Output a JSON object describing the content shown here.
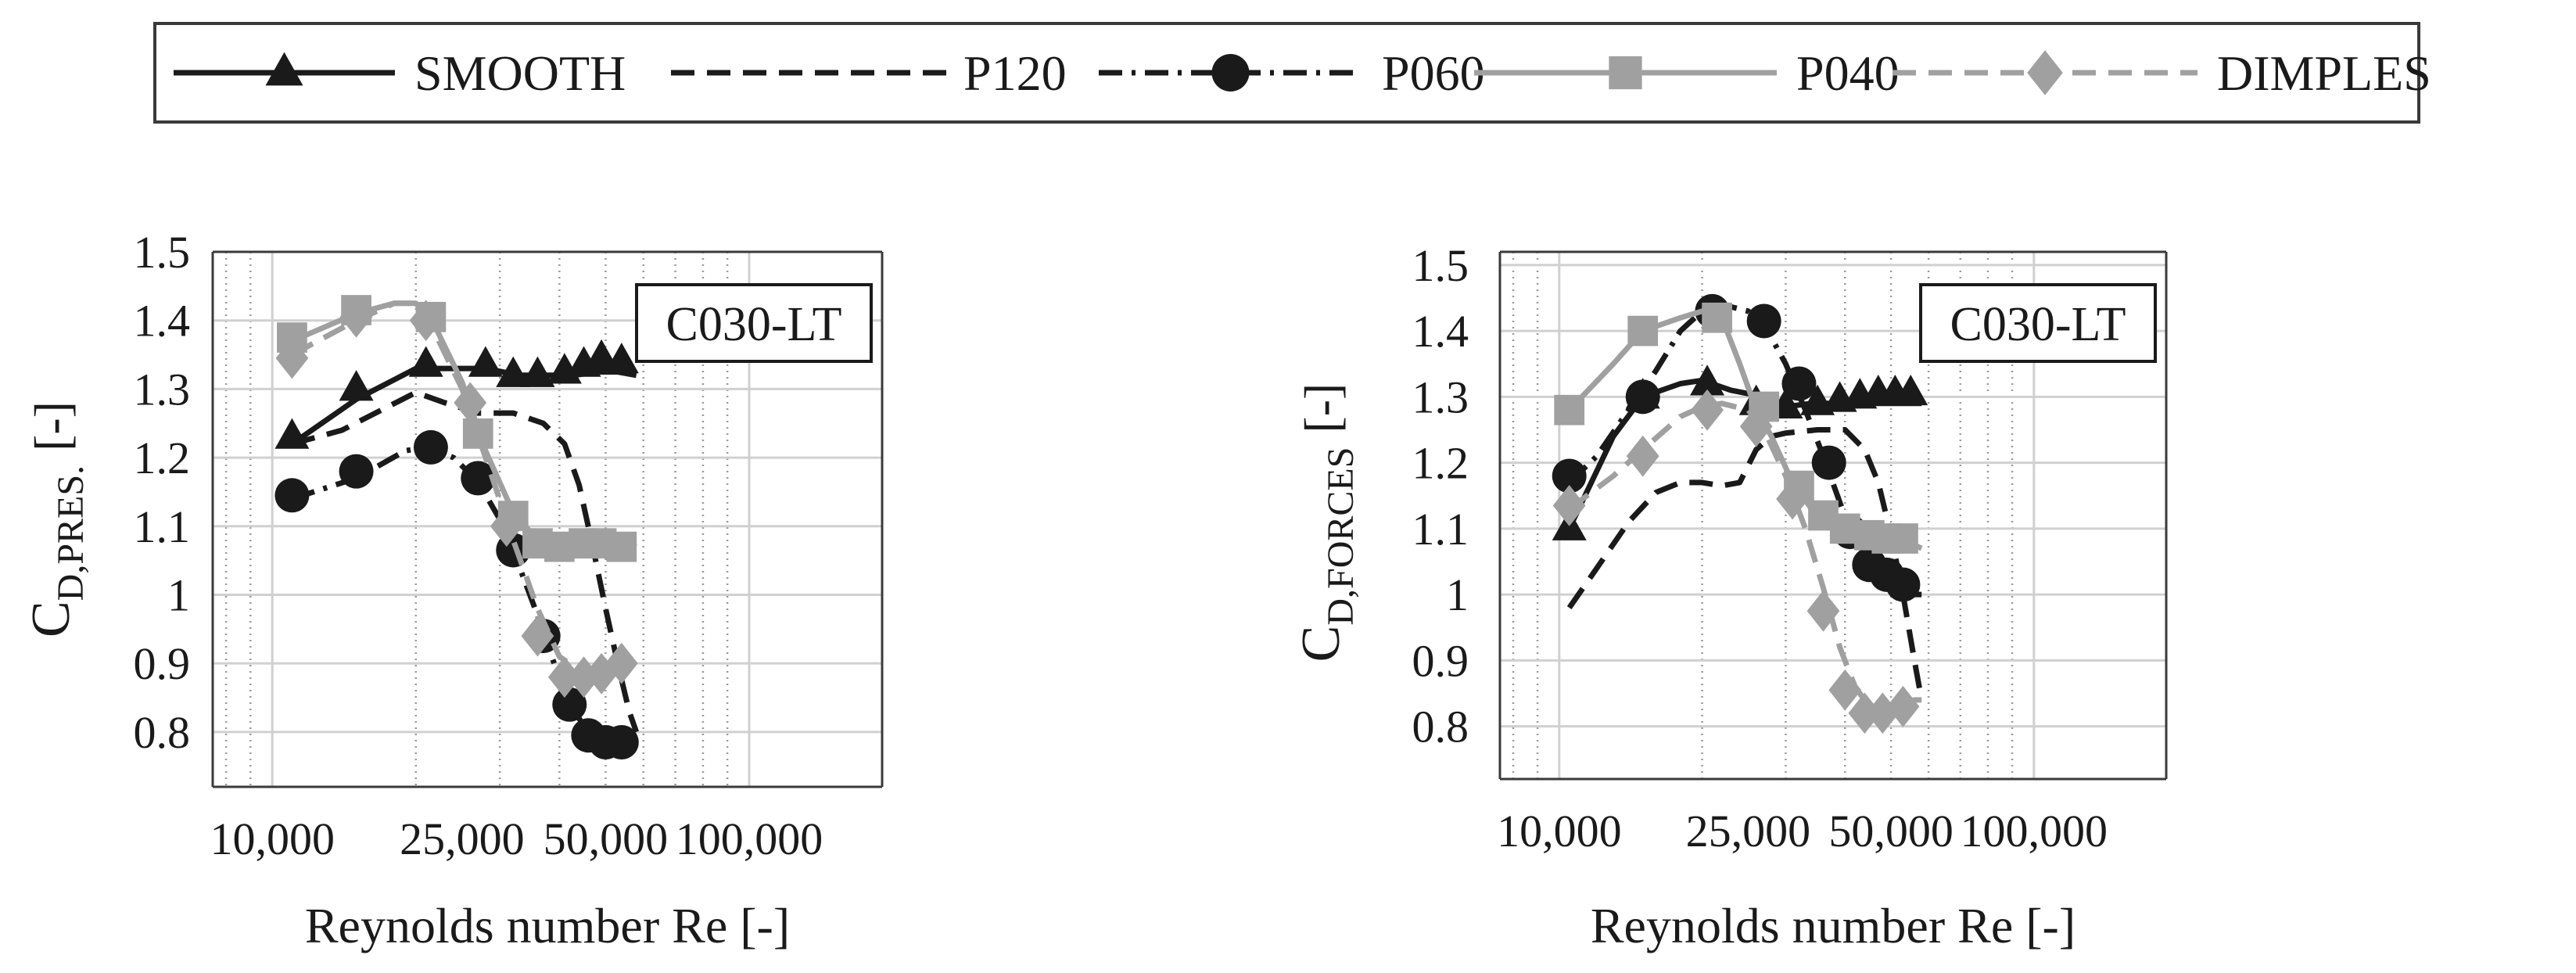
{
  "legend": {
    "entries": [
      {
        "label": "SMOOTH",
        "color": "#1a1a1a",
        "dash": "solid",
        "marker": "triangle"
      },
      {
        "label": "P120",
        "color": "#1a1a1a",
        "dash": "dashed",
        "marker": "none"
      },
      {
        "label": "P060",
        "color": "#1a1a1a",
        "dash": "dashdot",
        "marker": "circle"
      },
      {
        "label": "P040",
        "color": "#a0a0a0",
        "dash": "solid",
        "marker": "square"
      },
      {
        "label": "DIMPLES",
        "color": "#a0a0a0",
        "dash": "dashed",
        "marker": "diamond"
      }
    ]
  },
  "chart_data": [
    {
      "type": "line",
      "title": "",
      "annotation": "C030-LT",
      "xlabel": "Reynolds number Re [-]",
      "ylabel_main": "C",
      "ylabel_sub": "D,PRES.",
      "ylabel_unit": "[-]",
      "x_scale": "log",
      "xlim": [
        7500,
        190000
      ],
      "ylim": [
        0.72,
        1.5
      ],
      "xticks": [
        10000,
        25000,
        50000,
        100000
      ],
      "xtick_labels": [
        "10,000",
        "25,000",
        "50,000",
        "100,000"
      ],
      "yticks": [
        0.8,
        0.9,
        1.0,
        1.1,
        1.2,
        1.3,
        1.4,
        1.5
      ],
      "ytick_labels": [
        "0.8",
        "0.9",
        "1",
        "1.1",
        "1.2",
        "1.3",
        "1.4",
        "1.5"
      ],
      "grid": true,
      "series": [
        {
          "name": "SMOOTH",
          "curve_x": [
            11000,
            15000,
            20000,
            23000,
            28000,
            33000,
            38000,
            43000,
            48000,
            53000,
            58000
          ],
          "curve_y": [
            1.22,
            1.285,
            1.33,
            1.33,
            1.33,
            1.32,
            1.32,
            1.32,
            1.325,
            1.325,
            1.32
          ],
          "marker_x": [
            11000,
            15000,
            21000,
            28000,
            32000,
            36000,
            41000,
            45000,
            49000,
            54000
          ],
          "marker_y": [
            1.23,
            1.3,
            1.335,
            1.335,
            1.32,
            1.32,
            1.325,
            1.335,
            1.345,
            1.34
          ]
        },
        {
          "name": "P120",
          "curve_x": [
            11000,
            14000,
            17000,
            20000,
            23000,
            27000,
            32000,
            37000,
            41000,
            44000,
            47000,
            50000,
            53000,
            56000,
            58000
          ],
          "curve_y": [
            1.22,
            1.24,
            1.27,
            1.295,
            1.28,
            1.265,
            1.265,
            1.25,
            1.22,
            1.16,
            1.07,
            0.98,
            0.9,
            0.83,
            0.8
          ],
          "marker_x": [],
          "marker_y": []
        },
        {
          "name": "P060",
          "curve_x": [
            11000,
            15000,
            19000,
            21000,
            24000,
            27000,
            30000,
            33000,
            36000,
            39000,
            42000,
            46000,
            50000,
            54000,
            58000
          ],
          "curve_y": [
            1.14,
            1.17,
            1.21,
            1.215,
            1.2,
            1.165,
            1.11,
            1.04,
            0.97,
            0.9,
            0.84,
            0.8,
            0.785,
            0.785,
            0.8
          ],
          "marker_x": [
            11000,
            15000,
            21500,
            27000,
            32000,
            37000,
            42000,
            46000,
            50000,
            54000
          ],
          "marker_y": [
            1.145,
            1.18,
            1.215,
            1.17,
            1.065,
            0.94,
            0.84,
            0.795,
            0.785,
            0.785
          ]
        },
        {
          "name": "P040",
          "curve_x": [
            11000,
            15000,
            18000,
            20000,
            22000,
            25000,
            28000,
            32000,
            36000,
            40000,
            45000,
            50000,
            55000,
            58000
          ],
          "curve_y": [
            1.37,
            1.41,
            1.425,
            1.425,
            1.39,
            1.31,
            1.21,
            1.12,
            1.08,
            1.075,
            1.075,
            1.075,
            1.075,
            1.07
          ],
          "marker_x": [
            11000,
            15000,
            21500,
            27000,
            32000,
            36000,
            40000,
            45000,
            49000,
            54000
          ],
          "marker_y": [
            1.375,
            1.415,
            1.405,
            1.235,
            1.115,
            1.075,
            1.07,
            1.075,
            1.075,
            1.07
          ]
        },
        {
          "name": "DIMPLES",
          "curve_x": [
            11000,
            15000,
            18000,
            20000,
            22000,
            25000,
            28000,
            32000,
            36000,
            40000,
            45000,
            50000,
            54000,
            58000
          ],
          "curve_y": [
            1.35,
            1.4,
            1.425,
            1.425,
            1.38,
            1.3,
            1.2,
            1.08,
            0.98,
            0.91,
            0.885,
            0.885,
            0.895,
            0.92
          ],
          "marker_x": [
            11000,
            15000,
            21000,
            26000,
            31000,
            36000,
            41000,
            45000,
            49000,
            54000
          ],
          "marker_y": [
            1.345,
            1.405,
            1.4,
            1.28,
            1.1,
            0.94,
            0.88,
            0.88,
            0.885,
            0.9
          ]
        }
      ]
    },
    {
      "type": "line",
      "title": "",
      "annotation": "C030-LT",
      "xlabel": "Reynolds number Re [-]",
      "ylabel_main": "C",
      "ylabel_sub": "D,FORCES",
      "ylabel_unit": "[-]",
      "x_scale": "log",
      "xlim": [
        7500,
        190000
      ],
      "ylim": [
        0.72,
        1.52
      ],
      "xticks": [
        10000,
        25000,
        50000,
        100000
      ],
      "xtick_labels": [
        "10,000",
        "25,000",
        "50,000",
        "100,000"
      ],
      "yticks": [
        0.8,
        0.9,
        1.0,
        1.1,
        1.2,
        1.3,
        1.4,
        1.5
      ],
      "ytick_labels": [
        "0.8",
        "0.9",
        "1",
        "1.1",
        "1.2",
        "1.3",
        "1.4",
        "1.5"
      ],
      "grid": true,
      "series": [
        {
          "name": "SMOOTH",
          "curve_x": [
            10500,
            13000,
            15000,
            18000,
            20000,
            23000,
            27000,
            30000,
            34000,
            38000,
            43000,
            48000,
            53000,
            58000
          ],
          "curve_y": [
            1.1,
            1.24,
            1.3,
            1.32,
            1.325,
            1.31,
            1.3,
            1.285,
            1.29,
            1.29,
            1.29,
            1.29,
            1.29,
            1.29
          ],
          "marker_x": [
            10500,
            15000,
            20500,
            26000,
            30000,
            35000,
            39000,
            43000,
            47000,
            51000,
            55000
          ],
          "marker_y": [
            1.1,
            1.3,
            1.32,
            1.29,
            1.285,
            1.29,
            1.295,
            1.3,
            1.305,
            1.305,
            1.305
          ]
        },
        {
          "name": "P120",
          "curve_x": [
            10500,
            12000,
            14000,
            16000,
            18000,
            20000,
            22000,
            24000,
            26000,
            28000,
            30000,
            35000,
            40000,
            44000,
            47000,
            50000,
            53000,
            56000,
            58000
          ],
          "curve_y": [
            0.98,
            1.04,
            1.11,
            1.155,
            1.17,
            1.17,
            1.165,
            1.17,
            1.22,
            1.24,
            1.245,
            1.25,
            1.25,
            1.22,
            1.17,
            1.09,
            1.0,
            0.9,
            0.84
          ],
          "marker_x": [],
          "marker_y": []
        },
        {
          "name": "P060",
          "curve_x": [
            10500,
            12000,
            14000,
            16000,
            18000,
            20000,
            22000,
            25000,
            27000,
            30000,
            33000,
            36000,
            39000,
            42000,
            45000,
            48000,
            52000,
            56000,
            58000
          ],
          "curve_y": [
            1.17,
            1.21,
            1.28,
            1.34,
            1.4,
            1.43,
            1.44,
            1.43,
            1.41,
            1.35,
            1.28,
            1.21,
            1.14,
            1.08,
            1.05,
            1.035,
            1.02,
            1.0,
            1.0
          ],
          "marker_x": [
            10500,
            15000,
            21000,
            27000,
            32000,
            37000,
            41000,
            45000,
            49000,
            53000
          ],
          "marker_y": [
            1.18,
            1.3,
            1.43,
            1.415,
            1.32,
            1.2,
            1.095,
            1.045,
            1.03,
            1.015
          ]
        },
        {
          "name": "P040",
          "curve_x": [
            10500,
            13000,
            15000,
            18000,
            20000,
            22000,
            24000,
            26000,
            28000,
            31000,
            34000,
            38000,
            42000,
            46000,
            50000,
            54000,
            58000
          ],
          "curve_y": [
            1.28,
            1.35,
            1.4,
            1.42,
            1.43,
            1.42,
            1.35,
            1.28,
            1.24,
            1.17,
            1.13,
            1.11,
            1.1,
            1.09,
            1.085,
            1.08,
            1.07
          ],
          "marker_x": [
            10500,
            15000,
            21500,
            27000,
            32000,
            36000,
            40000,
            45000,
            49000,
            53000
          ],
          "marker_y": [
            1.28,
            1.4,
            1.42,
            1.285,
            1.165,
            1.12,
            1.1,
            1.09,
            1.085,
            1.085
          ]
        },
        {
          "name": "DIMPLES",
          "curve_x": [
            10500,
            13000,
            15000,
            18000,
            20000,
            22000,
            25000,
            27000,
            30000,
            33000,
            36000,
            39000,
            42000,
            45000,
            48000,
            52000,
            56000,
            58000
          ],
          "curve_y": [
            1.13,
            1.18,
            1.22,
            1.27,
            1.285,
            1.29,
            1.28,
            1.25,
            1.18,
            1.1,
            1.01,
            0.92,
            0.86,
            0.83,
            0.825,
            0.83,
            0.84,
            0.84
          ],
          "marker_x": [
            10500,
            15000,
            20500,
            26000,
            31000,
            36000,
            40000,
            44000,
            48000,
            53000
          ],
          "marker_y": [
            1.135,
            1.21,
            1.28,
            1.255,
            1.145,
            0.975,
            0.855,
            0.82,
            0.82,
            0.83
          ]
        }
      ]
    }
  ]
}
